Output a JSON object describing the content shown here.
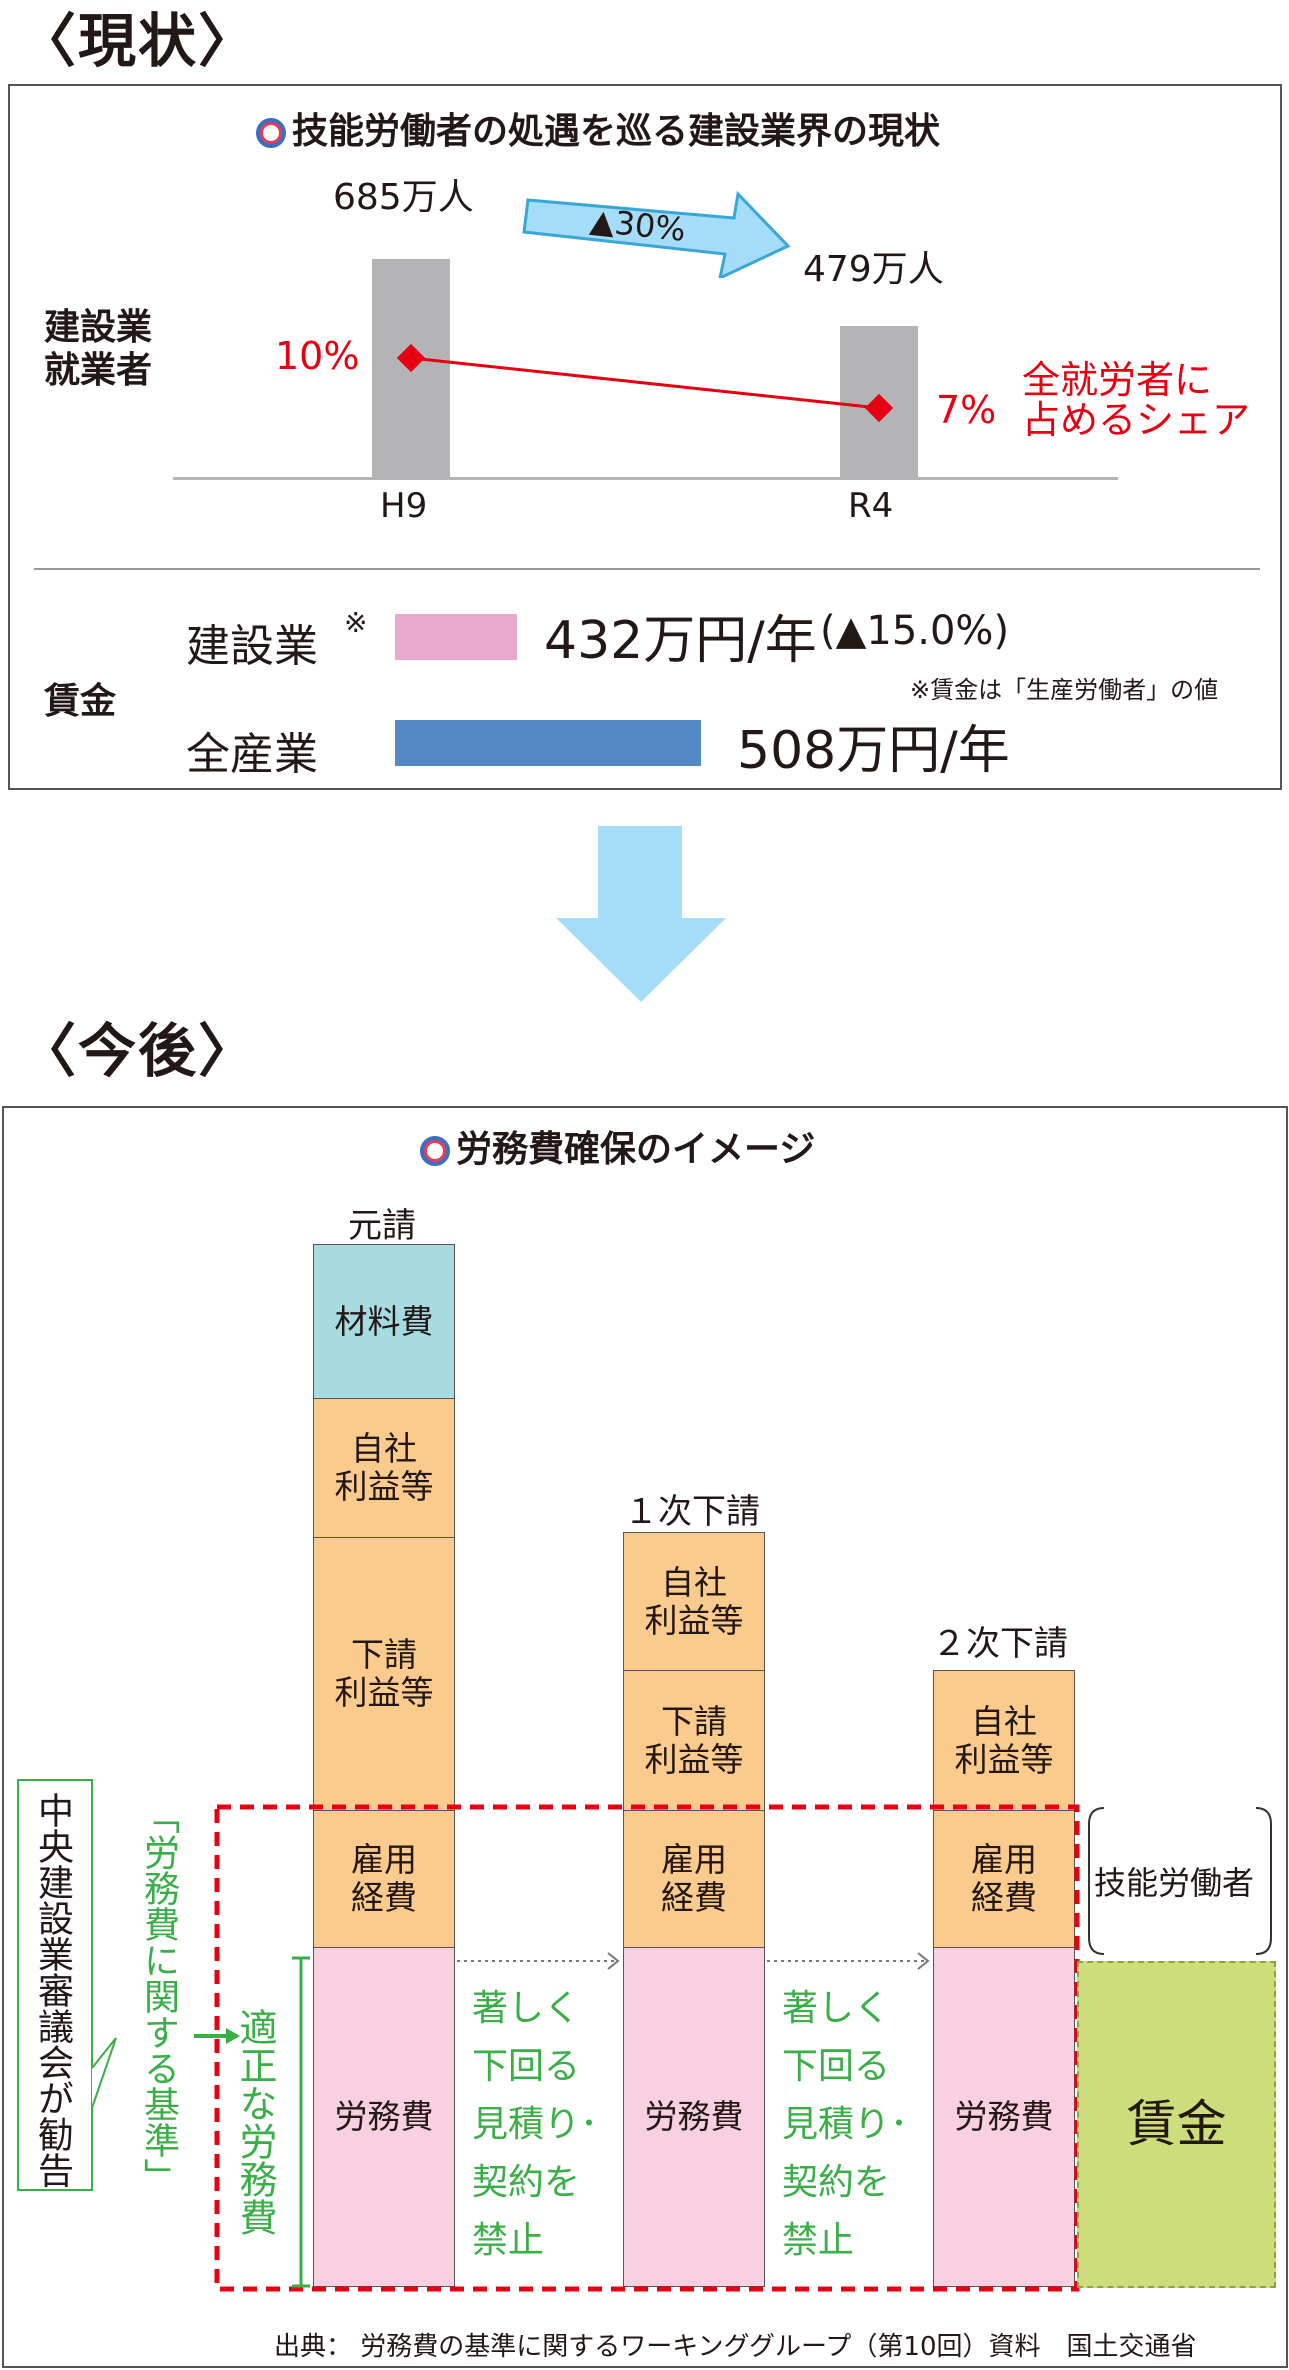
{
  "sections": {
    "current": "〈現状〉",
    "future": "〈今後〉"
  },
  "panel1": {
    "title": "技能労働者の処遇を巡る建設業界の現状",
    "row_label_workers": "建設業\n就業者",
    "h9_value": "685万人",
    "r4_value": "479万人",
    "change_badge": "▲30%",
    "share_h9": "10%",
    "share_r4": "7%",
    "share_label": "全就労者に\n占めるシェア",
    "x_labels": [
      "H9",
      "R4"
    ],
    "wage_label": "賃金",
    "construction_label": "建設業",
    "construction_mark": "※",
    "construction_wage": "432万円/年",
    "construction_change": "(▲15.0%)",
    "all_label": "全産業",
    "all_wage": "508万円/年",
    "footnote": "※賃金は「生産労働者」の値"
  },
  "chart_data": {
    "type": "bar",
    "categories": [
      "H9",
      "R4"
    ],
    "series": [
      {
        "name": "建設業就業者",
        "values": [
          685,
          479
        ]
      },
      {
        "name": "全就労者に占めるシェア",
        "values": [
          10,
          7
        ]
      }
    ],
    "wages": {
      "categories": [
        "建設業",
        "全産業"
      ],
      "values": [
        432,
        508
      ]
    }
  },
  "panel2": {
    "title": "労務費確保のイメージ",
    "col1_label": "元請",
    "col2_label": "１次下請",
    "col3_label": "２次下請",
    "material": "材料費",
    "own_profit": "自社\n利益等",
    "sub_profit": "下請\n利益等",
    "employment": "雇用\n経費",
    "labor": "労務費",
    "prohibit": "著しく\n下回る\n見積り･\n契約を\n禁止",
    "worker": "技能労働者",
    "wage": "賃金",
    "council": "中央建設業審議会が勧告",
    "standard": "「労務費に関する基準」",
    "appropriate": "適正な労務費",
    "source": "出典： 労務費の基準に関するワーキンググループ（第10回）資料　国土交通省"
  },
  "colors": {
    "red": "#e60012",
    "green": "#3aae47",
    "arrow": "#a5dcf7",
    "pink_bar": "#e8a9cc",
    "blue_bar": "#5489c7",
    "wage_box": "#cddd7c"
  }
}
